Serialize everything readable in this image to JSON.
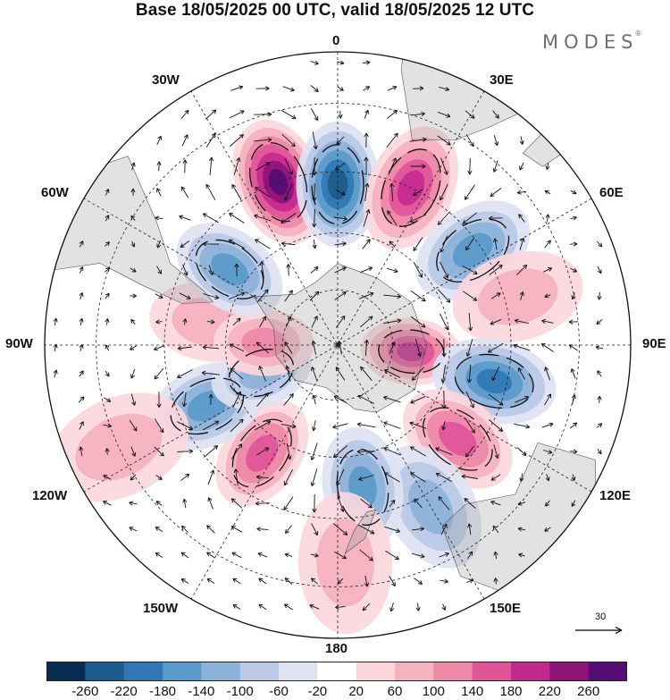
{
  "title": "Base 18/05/2025 00 UTC, valid 18/05/2025 12 UTC",
  "brand": {
    "name": "MODES",
    "mark": "®"
  },
  "map": {
    "projection": "south-polar-stereographic",
    "longitude_labels": {
      "top": "0",
      "top_right": "30E",
      "right_upper": "60E",
      "right": "90E",
      "right_lower": "120E",
      "bottom_right": "150E",
      "bottom": "180",
      "bottom_left": "150W",
      "left_lower": "120W",
      "left": "90W",
      "left_upper": "60W",
      "top_left": "30W"
    },
    "reference_vector_label": "30",
    "anomaly_centers": [
      {
        "lon": -20,
        "lat": -45,
        "value": 240
      },
      {
        "lon": 0,
        "lat": -48,
        "value": -200
      },
      {
        "lon": 25,
        "lat": -45,
        "value": 180
      },
      {
        "lon": 55,
        "lat": -47,
        "value": -140
      },
      {
        "lon": 75,
        "lat": -42,
        "value": 60
      },
      {
        "lon": 95,
        "lat": -70,
        "value": 160
      },
      {
        "lon": 103,
        "lat": -48,
        "value": -180
      },
      {
        "lon": 128,
        "lat": -50,
        "value": 120
      },
      {
        "lon": 150,
        "lat": -42,
        "value": -80
      },
      {
        "lon": 170,
        "lat": -52,
        "value": -130
      },
      {
        "lon": 178,
        "lat": -35,
        "value": 60
      },
      {
        "lon": -145,
        "lat": -55,
        "value": 150
      },
      {
        "lon": -115,
        "lat": -52,
        "value": -150
      },
      {
        "lon": -110,
        "lat": -68,
        "value": -100
      },
      {
        "lon": -80,
        "lat": -55,
        "value": 60
      },
      {
        "lon": -88,
        "lat": -70,
        "value": 80
      },
      {
        "lon": -55,
        "lat": -55,
        "value": -140
      },
      {
        "lon": -115,
        "lat": -30,
        "value": 40
      }
    ]
  },
  "colorbar": {
    "colors": [
      "#0a2d55",
      "#1c5a8c",
      "#2f78b5",
      "#5a9acb",
      "#8db2da",
      "#b9c9e6",
      "#dee2f1",
      "#ffffff",
      "#fbd7dd",
      "#f6b2c1",
      "#ef89a8",
      "#e05598",
      "#c42a8e",
      "#8d1478",
      "#550c73"
    ],
    "tick_labels": [
      "-260",
      "-220",
      "-180",
      "-140",
      "-100",
      "-60",
      "-20",
      "20",
      "60",
      "100",
      "140",
      "180",
      "220",
      "260"
    ]
  }
}
